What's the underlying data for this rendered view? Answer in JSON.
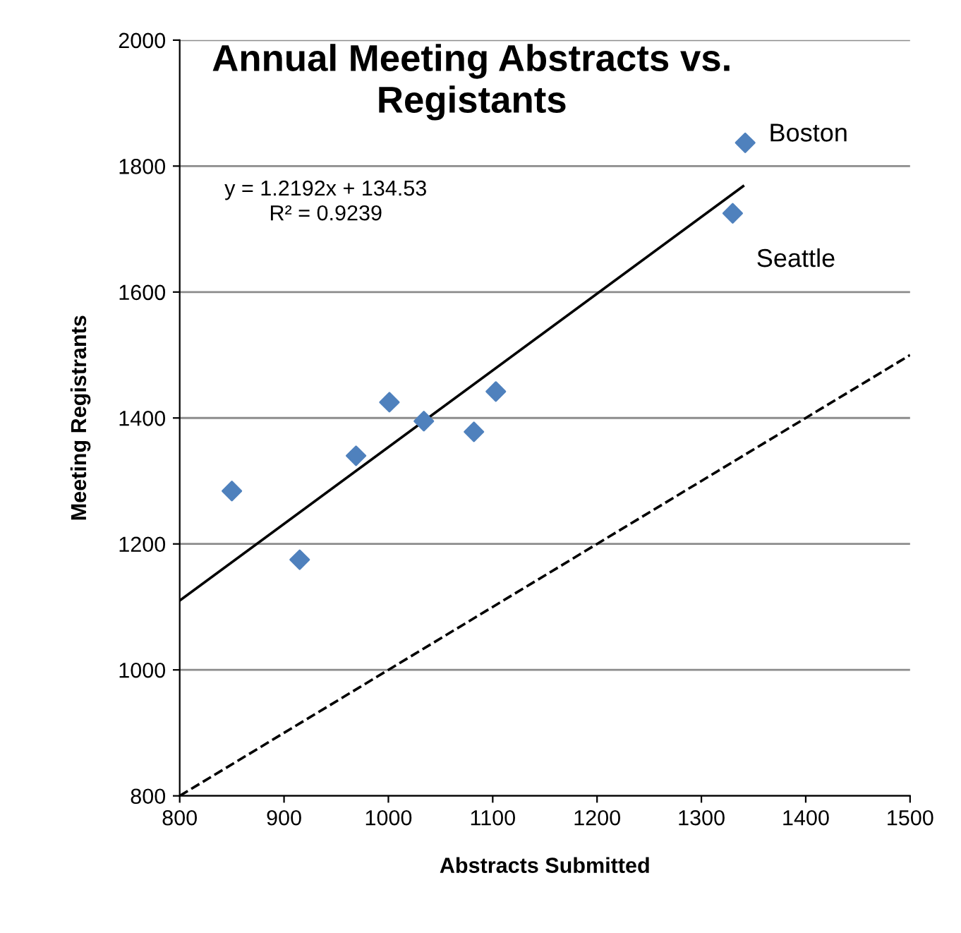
{
  "chart_data": {
    "type": "scatter",
    "title": "Annual Meeting Abstracts vs.\nRegistants",
    "xlabel": "Abstracts Submitted",
    "ylabel": "Meeting Registrants",
    "xlim": [
      800,
      1500
    ],
    "xticks": [
      800,
      900,
      1000,
      1100,
      1200,
      1300,
      1400,
      1500
    ],
    "ylim": [
      800,
      2000
    ],
    "yticks": [
      800,
      1000,
      1200,
      1400,
      1600,
      1800,
      2000
    ],
    "grid": "y",
    "legend": false,
    "series": [
      {
        "marker": "diamond",
        "color": "#4f81bd",
        "x": [
          850,
          915,
          969,
          1001,
          1034,
          1082,
          1103,
          1330,
          1342
        ],
        "values": [
          1284,
          1175,
          1340,
          1425,
          1395,
          1378,
          1442,
          1725,
          1837
        ]
      },
      {
        "type": "line",
        "color": "#000000",
        "line_style": "solid",
        "marker": "none",
        "x": [
          800,
          1340
        ],
        "values": [
          1110,
          1768
        ]
      },
      {
        "type": "line",
        "color": "#000000",
        "line_style": "dashed",
        "marker": "none",
        "x": [
          800,
          1500
        ],
        "values": [
          800,
          1500
        ]
      }
    ],
    "annotations": [
      "y = 1.2192x + 134.53\nR² = 0.9239",
      {
        "text": "Boston",
        "x": 1342,
        "y": 1837
      },
      {
        "text": "Seattle",
        "x": 1330,
        "y": 1725
      }
    ]
  }
}
